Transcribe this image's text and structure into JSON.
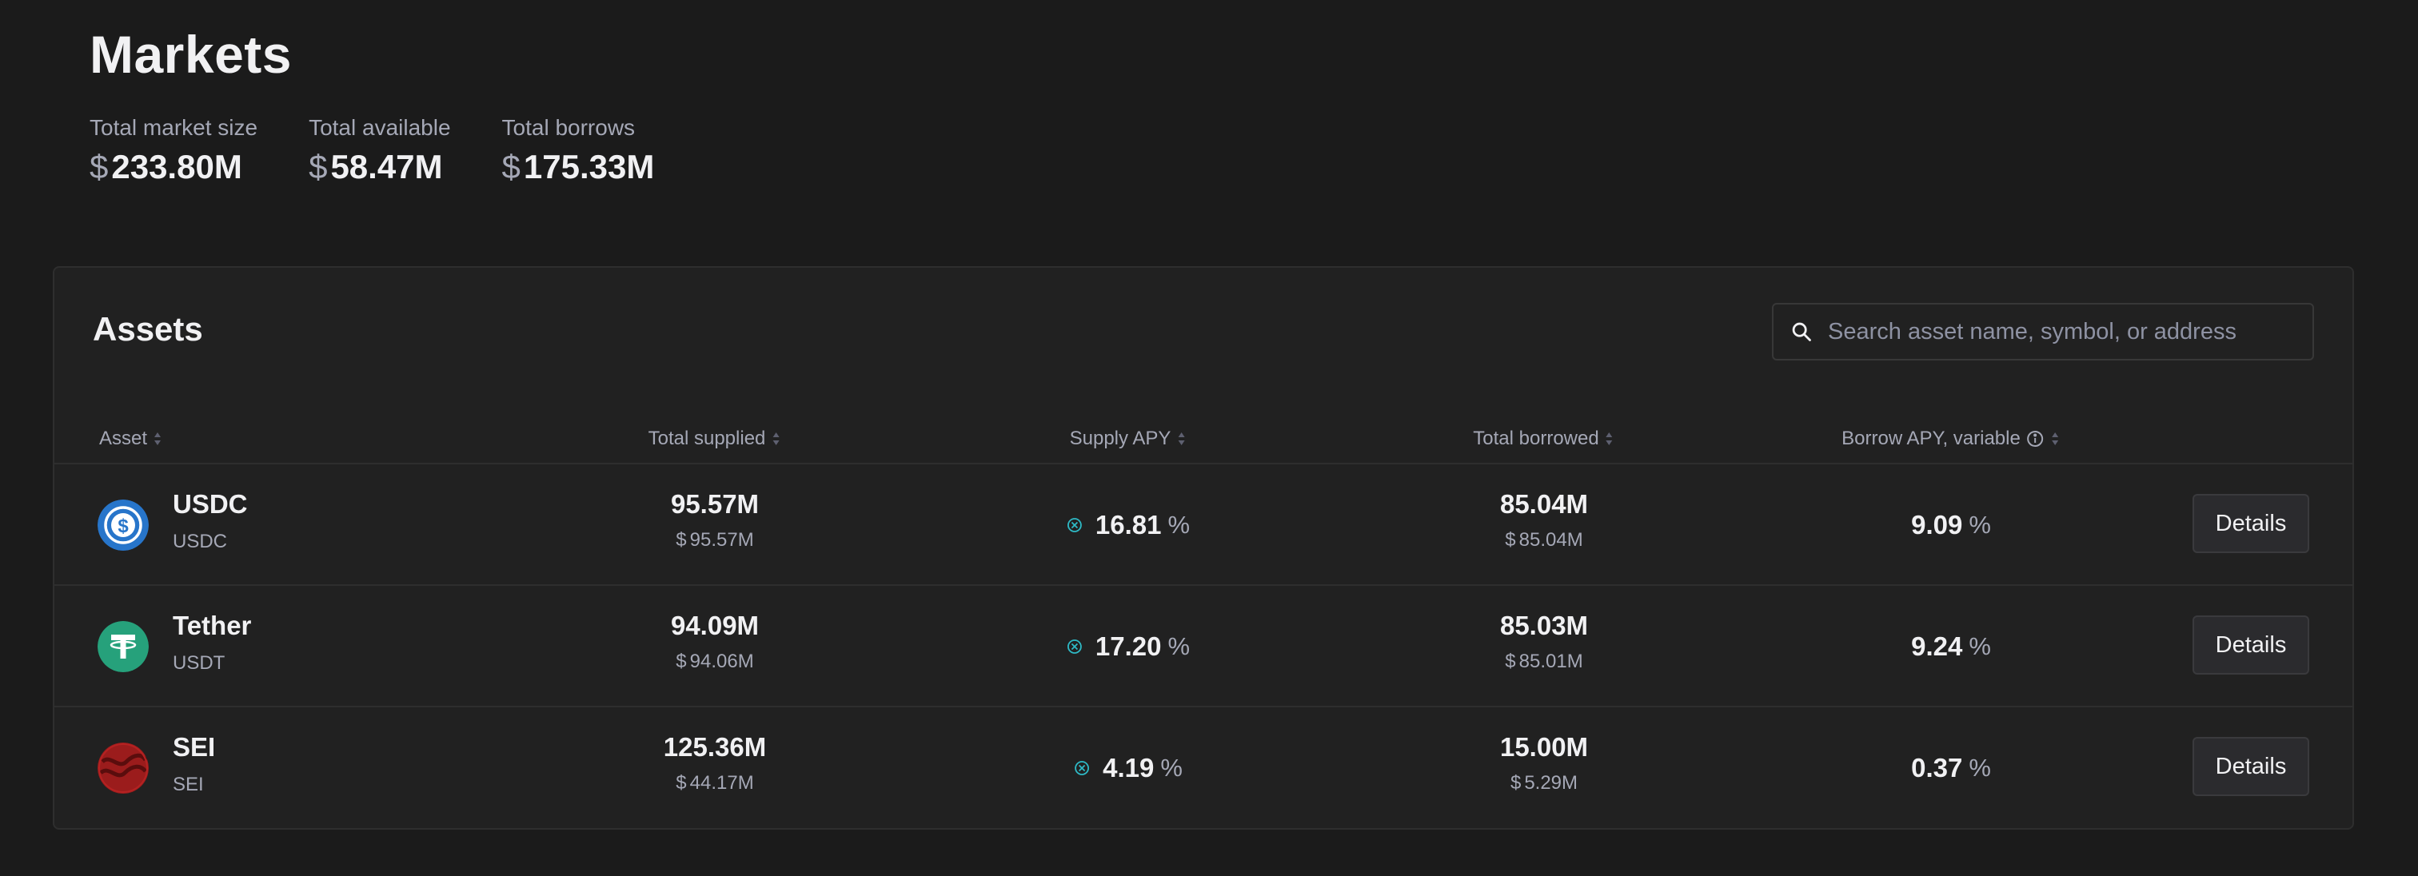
{
  "page": {
    "title": "Markets"
  },
  "stats": [
    {
      "label": "Total market size",
      "currency": "$",
      "value": "233.80M"
    },
    {
      "label": "Total available",
      "currency": "$",
      "value": "58.47M"
    },
    {
      "label": "Total borrows",
      "currency": "$",
      "value": "175.33M"
    }
  ],
  "assets_section": {
    "title": "Assets",
    "search": {
      "placeholder": "Search asset name, symbol, or address",
      "value": ""
    },
    "columns": [
      {
        "label": "Asset"
      },
      {
        "label": "Total supplied"
      },
      {
        "label": "Supply APY"
      },
      {
        "label": "Total borrowed"
      },
      {
        "label": "Borrow APY, variable"
      }
    ],
    "rows": [
      {
        "name": "USDC",
        "symbol": "USDC",
        "icon": "usdc-icon",
        "icon_color": "#2775ca",
        "total_supplied": "95.57M",
        "total_supplied_usd": "95.57M",
        "supply_apy": "16.81",
        "total_borrowed": "85.04M",
        "total_borrowed_usd": "85.04M",
        "borrow_apy": "9.09",
        "details_label": "Details"
      },
      {
        "name": "Tether",
        "symbol": "USDT",
        "icon": "tether-icon",
        "icon_color": "#26a17b",
        "total_supplied": "94.09M",
        "total_supplied_usd": "94.06M",
        "supply_apy": "17.20",
        "total_borrowed": "85.03M",
        "total_borrowed_usd": "85.01M",
        "borrow_apy": "9.24",
        "details_label": "Details"
      },
      {
        "name": "SEI",
        "symbol": "SEI",
        "icon": "sei-icon",
        "icon_color": "#9b1c1c",
        "total_supplied": "125.36M",
        "total_supplied_usd": "44.17M",
        "supply_apy": "4.19",
        "total_borrowed": "15.00M",
        "total_borrowed_usd": "5.29M",
        "borrow_apy": "0.37",
        "details_label": "Details"
      }
    ],
    "currency_symbol": "$",
    "percent_symbol": "%"
  },
  "colors": {
    "background": "#1b1b1b",
    "card": "#212121",
    "reward_accent": "#2ebac6",
    "muted_text": "#a5a8b6"
  }
}
